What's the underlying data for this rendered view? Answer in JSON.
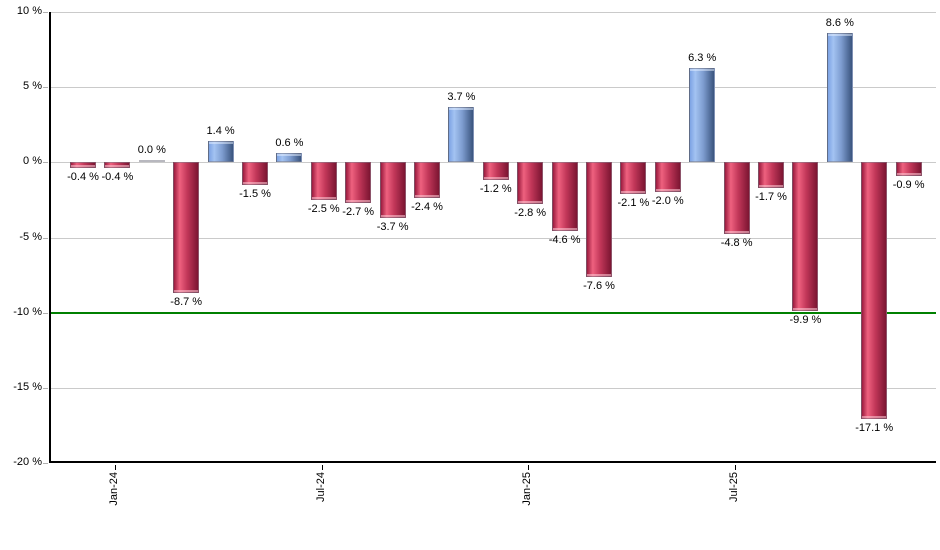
{
  "chart_data": {
    "type": "bar",
    "title": "",
    "xlabel": "",
    "ylabel": "",
    "ylim": [
      -20,
      10
    ],
    "grid": true,
    "values": [
      -0.4,
      -0.4,
      0.0,
      -8.7,
      1.4,
      -1.5,
      0.6,
      -2.5,
      -2.7,
      -3.7,
      -2.4,
      3.7,
      -1.2,
      -2.8,
      -4.6,
      -7.6,
      -2.1,
      -2.0,
      6.3,
      -4.8,
      -1.7,
      -9.9,
      8.6,
      -17.1,
      -0.9
    ],
    "bar_labels": [
      "-0.4 %",
      "-0.4 %",
      "0.0 %",
      "-8.7 %",
      "1.4 %",
      "-1.5 %",
      "0.6 %",
      "-2.5 %",
      "-2.7 %",
      "-3.7 %",
      "-2.4 %",
      "3.7 %",
      "-1.2 %",
      "-2.8 %",
      "-4.6 %",
      "-7.6 %",
      "-2.1 %",
      "-2.0 %",
      "6.3 %",
      "-4.8 %",
      "-1.7 %",
      "-9.9 %",
      "8.6 %",
      "-17.1 %",
      "-0.9 %"
    ],
    "y_ticks": [
      {
        "label": "10 %",
        "value": 10
      },
      {
        "label": "5 %",
        "value": 5
      },
      {
        "label": "0 %",
        "value": 0
      },
      {
        "label": "-5 %",
        "value": -5
      },
      {
        "label": "-10 %",
        "value": -10
      },
      {
        "label": "-15 %",
        "value": -15
      },
      {
        "label": "-20 %",
        "value": -20
      }
    ],
    "x_ticks": [
      {
        "label": "Jan-24",
        "bar_index": 1
      },
      {
        "label": "Jul-24",
        "bar_index": 7
      },
      {
        "label": "Jan-25",
        "bar_index": 13
      },
      {
        "label": "Jul-25",
        "bar_index": 19
      }
    ],
    "threshold_line": {
      "value": -10,
      "color": "#008000"
    },
    "colors": {
      "positive_light": "#a3c3f2",
      "positive_dark": "#3a547e",
      "negative_light": "#ee617f",
      "negative_dark": "#7c1532",
      "gridline": "#cacaca",
      "threshold": "#008000"
    }
  }
}
